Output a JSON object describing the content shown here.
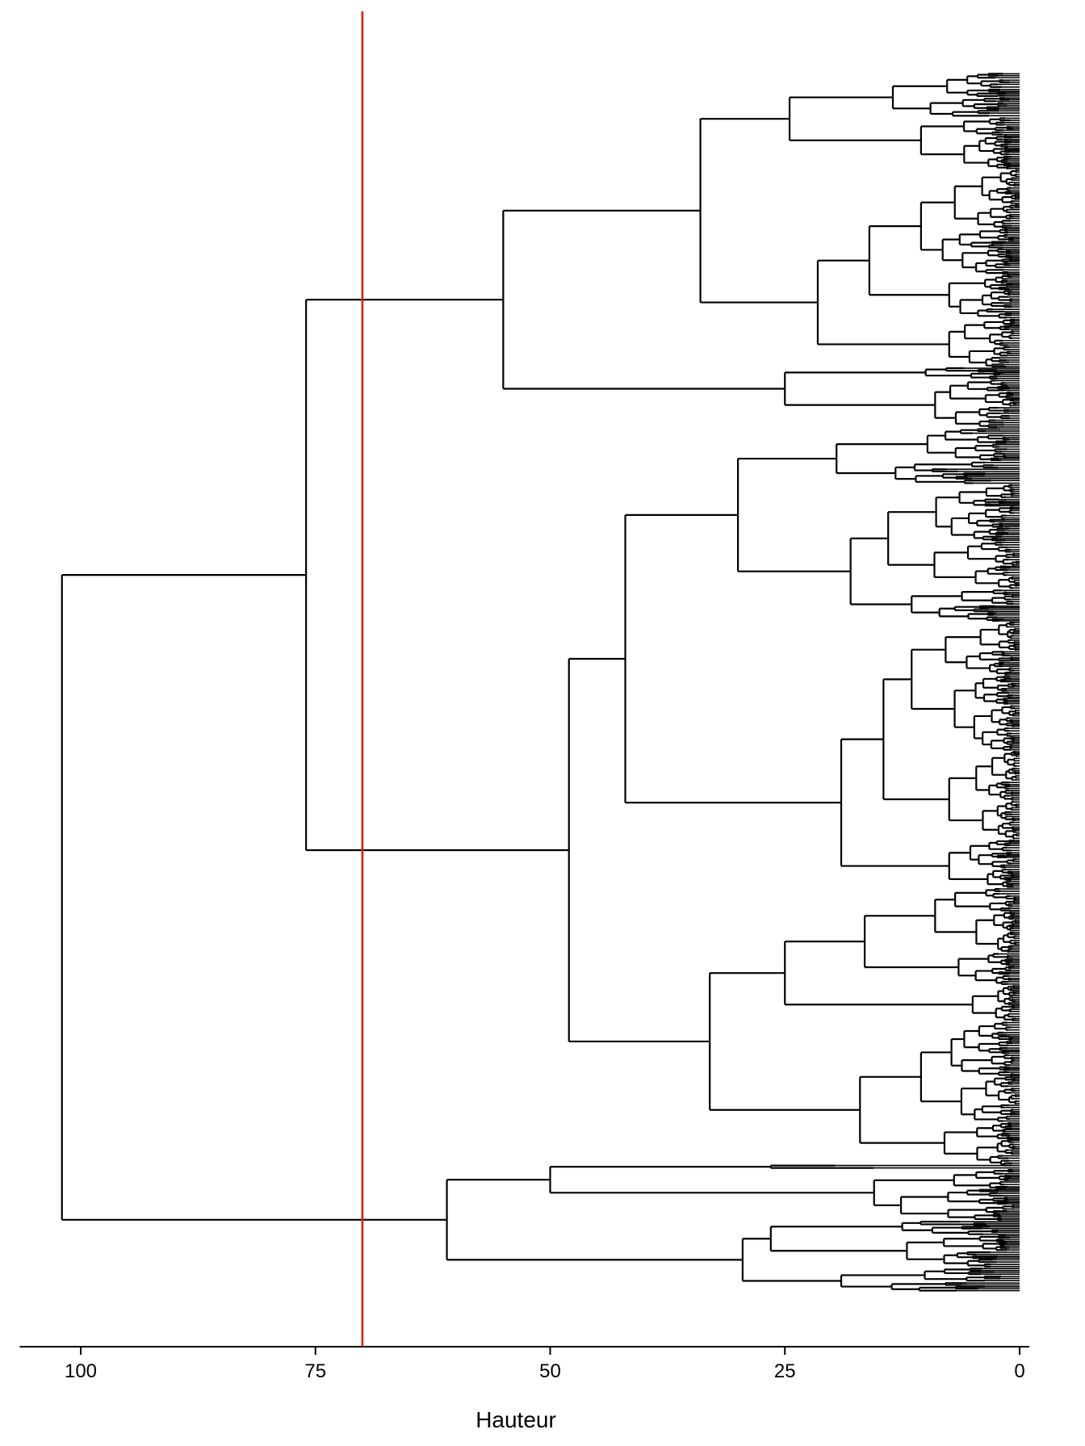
{
  "chart_data": {
    "type": "dendrogram",
    "orientation": "horizontal",
    "xlabel": "Hauteur",
    "xlim": [
      106.5,
      0
    ],
    "x_ticks": [
      100,
      75,
      50,
      25,
      0
    ],
    "x_tick_labels": [
      "100",
      "75",
      "50",
      "25",
      "0"
    ],
    "cut_height": 70,
    "cut_line_color": "#e41a1c",
    "tree_color": "#000000",
    "leaf_count": 1200,
    "merges": [
      {
        "height": 102,
        "children": [
          "A",
          "B"
        ]
      },
      {
        "height": 76,
        "children": [
          "A1",
          "A2"
        ]
      },
      {
        "height": 61,
        "children": [
          "B1",
          "B2"
        ]
      },
      {
        "height": 55,
        "children": [
          "A1a",
          "A1b"
        ]
      },
      {
        "height": 48,
        "children": [
          "A2a",
          "A2b"
        ]
      },
      {
        "height": 50,
        "children": [
          "B1a",
          "B1b"
        ]
      },
      {
        "height": 29.5,
        "children": [
          "B2a",
          "B2b"
        ]
      },
      {
        "height": 34,
        "children": [
          "A1a-top",
          "A1a-bottom"
        ]
      },
      {
        "height": 25,
        "children": [
          "A1b-top",
          "A1b-bottom"
        ]
      },
      {
        "height": 42,
        "children": [
          "A2a-top",
          "A2a-bottom"
        ]
      },
      {
        "height": 33,
        "children": [
          "A2b-top",
          "A2b-bottom"
        ]
      }
    ]
  }
}
